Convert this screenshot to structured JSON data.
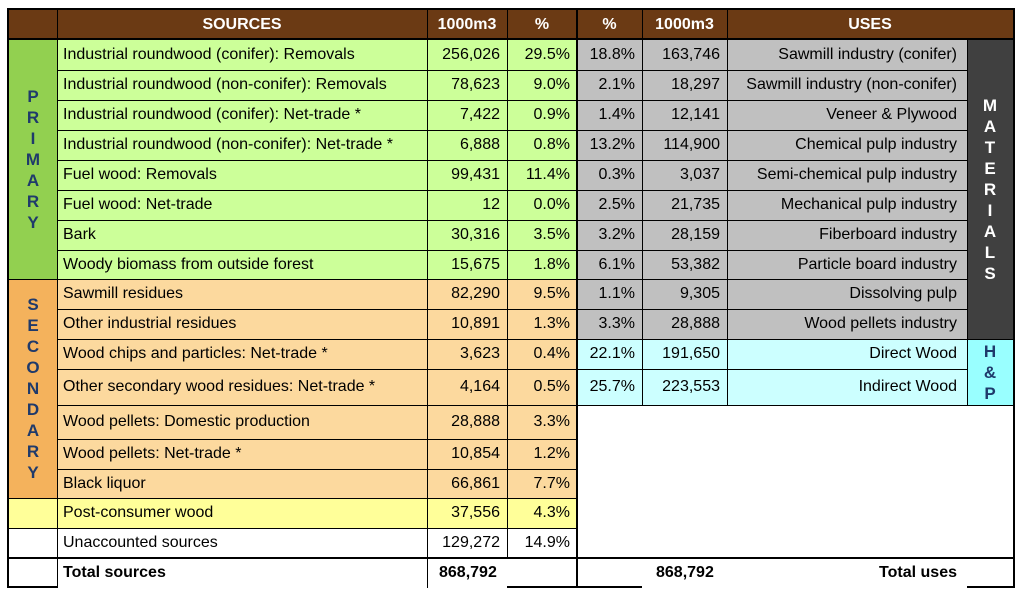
{
  "headers": {
    "sources": "SOURCES",
    "m3_left": "1000m3",
    "pct_left": "%",
    "pct_right": "%",
    "m3_right": "1000m3",
    "uses": "USES"
  },
  "side_labels": {
    "primary": "PRIMARY",
    "secondary": "SECONDARY",
    "materials": "MATERIALS",
    "hp": "H&P"
  },
  "colors": {
    "header": "#6b3a14",
    "primary_dark": "#92d050",
    "primary_light": "#ccff99",
    "secondary_dark": "#f4b25c",
    "secondary_light": "#fcd99e",
    "post_consumer": "#ffff99",
    "uses_grey": "#c0c0c0",
    "materials_dark": "#404040",
    "hp_cyan": "#99ffff",
    "hp_light": "#ccffff"
  },
  "rows": [
    {
      "source": "Industrial roundwood (conifer): Removals",
      "m3": "256,026",
      "pct": "29.5%",
      "u_pct": "18.8%",
      "u_m3": "163,746",
      "use": "Sawmill industry (conifer)"
    },
    {
      "source": "Industrial roundwood (non-conifer): Removals",
      "m3": "78,623",
      "pct": "9.0%",
      "u_pct": "2.1%",
      "u_m3": "18,297",
      "use": "Sawmill industry (non-conifer)"
    },
    {
      "source": "Industrial roundwood (conifer): Net-trade *",
      "m3": "7,422",
      "pct": "0.9%",
      "u_pct": "1.4%",
      "u_m3": "12,141",
      "use": "Veneer & Plywood"
    },
    {
      "source": "Industrial roundwood (non-conifer): Net-trade *",
      "m3": "6,888",
      "pct": "0.8%",
      "u_pct": "13.2%",
      "u_m3": "114,900",
      "use": "Chemical pulp industry"
    },
    {
      "source": "Fuel wood: Removals",
      "m3": "99,431",
      "pct": "11.4%",
      "u_pct": "0.3%",
      "u_m3": "3,037",
      "use": "Semi-chemical pulp industry"
    },
    {
      "source": "Fuel wood: Net-trade",
      "m3": "12",
      "pct": "0.0%",
      "u_pct": "2.5%",
      "u_m3": "21,735",
      "use": "Mechanical pulp industry"
    },
    {
      "source": "Bark",
      "m3": "30,316",
      "pct": "3.5%",
      "u_pct": "3.2%",
      "u_m3": "28,159",
      "use": "Fiberboard industry"
    },
    {
      "source": "Woody biomass from outside forest",
      "m3": "15,675",
      "pct": "1.8%",
      "u_pct": "6.1%",
      "u_m3": "53,382",
      "use": "Particle board industry"
    },
    {
      "source": "Sawmill residues",
      "m3": "82,290",
      "pct": "9.5%",
      "u_pct": "1.1%",
      "u_m3": "9,305",
      "use": "Dissolving pulp"
    },
    {
      "source": "Other industrial residues",
      "m3": "10,891",
      "pct": "1.3%",
      "u_pct": "3.3%",
      "u_m3": "28,888",
      "use": "Wood pellets industry"
    },
    {
      "source": "Wood chips and particles: Net-trade *",
      "m3": "3,623",
      "pct": "0.4%",
      "u_pct": "22.1%",
      "u_m3": "191,650",
      "use": "Direct Wood"
    },
    {
      "source": "Other secondary wood residues: Net-trade *",
      "m3": "4,164",
      "pct": "0.5%",
      "u_pct": "25.7%",
      "u_m3": "223,553",
      "use": "Indirect Wood"
    },
    {
      "source": "Wood pellets: Domestic production",
      "m3": "28,888",
      "pct": "3.3%",
      "u_pct": "",
      "u_m3": "",
      "use": ""
    },
    {
      "source": "Wood pellets: Net-trade *",
      "m3": "10,854",
      "pct": "1.2%",
      "u_pct": "",
      "u_m3": "",
      "use": ""
    },
    {
      "source": "Black liquor",
      "m3": "66,861",
      "pct": "7.7%",
      "u_pct": "",
      "u_m3": "",
      "use": ""
    },
    {
      "source": "Post-consumer wood",
      "m3": "37,556",
      "pct": "4.3%",
      "u_pct": "",
      "u_m3": "",
      "use": ""
    },
    {
      "source": "Unaccounted sources",
      "m3": "129,272",
      "pct": "14.9%",
      "u_pct": "",
      "u_m3": "",
      "use": ""
    }
  ],
  "totals": {
    "sources_label": "Total sources",
    "sources_value": "868,792",
    "uses_value": "868,792",
    "uses_label": "Total uses"
  }
}
